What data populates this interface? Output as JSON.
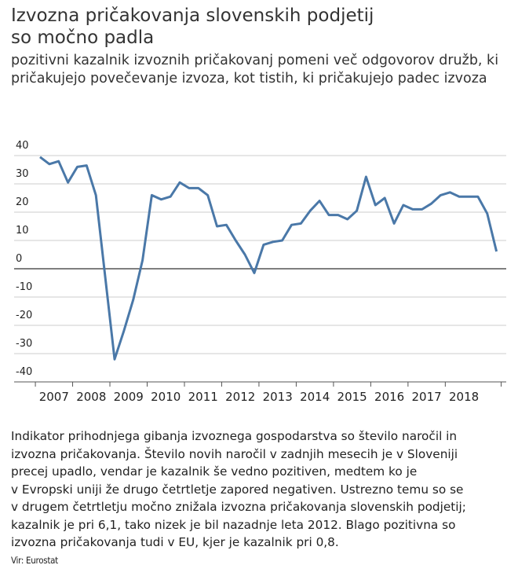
{
  "chart_data": {
    "type": "line",
    "title": "Izvozna pričakovanja slovenskih podjetij so močno padla",
    "subtitle": "pozitivni kazalnik izvoznih pričakovanj pomeni več odgovorov družb, ki pričakujejo povečevanje izvoza, kot tistih, ki pričakujejo padec izvoza",
    "categories": [
      "2007",
      null,
      null,
      null,
      "2008",
      null,
      null,
      null,
      "2009",
      null,
      null,
      null,
      "2010",
      null,
      null,
      null,
      "2011",
      null,
      null,
      null,
      "2012",
      null,
      null,
      null,
      "2013",
      null,
      null,
      null,
      "2014",
      null,
      null,
      null,
      "2015",
      null,
      null,
      null,
      "2016",
      null,
      null,
      null,
      "2017",
      null,
      null,
      null,
      "2018",
      null,
      null,
      null,
      null,
      null
    ],
    "series": [
      {
        "name": null,
        "color": "#4a78a8",
        "values": [
          39.5,
          37,
          38,
          30.5,
          36,
          36.5,
          26,
          -3,
          -32,
          -22,
          -11,
          3,
          26,
          24.5,
          25.5,
          30.5,
          28.5,
          28.5,
          26,
          15,
          15.5,
          10,
          5,
          -1.5,
          8.5,
          9.5,
          10,
          15.5,
          16,
          20.5,
          24,
          19,
          19,
          17.5,
          20.5,
          32.5,
          22.5,
          25,
          16,
          22.5,
          21,
          21,
          23,
          26,
          27,
          25.5,
          25.5,
          25.5,
          19.5,
          6.1
        ]
      }
    ],
    "ylim": [
      -40,
      40
    ],
    "yticks": [
      -40,
      -30,
      -20,
      -10,
      0,
      10,
      20,
      30,
      40
    ],
    "grid": true
  },
  "description": [
    "Indikator prihodnjega gibanja izvoznega gospodarstva so število naročil in",
    "izvozna pričakovanja. Število novih naročil v zadnjih mesecih je v Sloveniji",
    "precej upadlo, vendar je kazalnik še vedno pozitiven, medtem ko je",
    "v Evropski uniji že drugo četrtletje zapored negativen. Ustrezno temu so se",
    "v drugem četrtletju močno znižala izvozna pričakovanja slovenskih podjetij;",
    "kazalnik je pri 6,1, tako nizek je bil nazadnje leta 2012. Blago pozitivna so",
    "izvozna pričakovanja tudi v EU, kjer je kazalnik pri 0,8."
  ],
  "source": "Vir: Eurostat"
}
